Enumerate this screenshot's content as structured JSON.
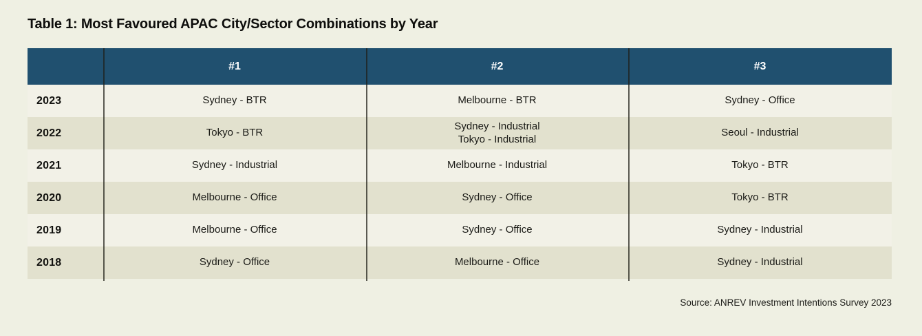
{
  "title": "Table 1: Most Favoured APAC City/Sector Combinations by Year",
  "source": "Source: ANREV Investment Intentions Survey 2023",
  "colors": {
    "page_bg": "#eff0e3",
    "header_bg": "#20506f",
    "header_text": "#ffffff",
    "row_light": "#f2f1e7",
    "row_shaded": "#e2e1ce",
    "divider": "rgba(30,30,24,0.72)",
    "text": "#1a1a16"
  },
  "table": {
    "columns": [
      "",
      "#1",
      "#2",
      "#3"
    ],
    "rows": [
      {
        "year": "2023",
        "c1": "Sydney - BTR",
        "c2": "Melbourne - BTR",
        "c3": "Sydney - Office"
      },
      {
        "year": "2022",
        "c1": "Tokyo - BTR",
        "c2": "Sydney - Industrial\nTokyo - Industrial",
        "c3": "Seoul - Industrial"
      },
      {
        "year": "2021",
        "c1": "Sydney - Industrial",
        "c2": "Melbourne - Industrial",
        "c3": "Tokyo - BTR"
      },
      {
        "year": "2020",
        "c1": "Melbourne - Office",
        "c2": "Sydney - Office",
        "c3": "Tokyo - BTR"
      },
      {
        "year": "2019",
        "c1": "Melbourne - Office",
        "c2": "Sydney - Office",
        "c3": "Sydney - Industrial"
      },
      {
        "year": "2018",
        "c1": "Sydney - Office",
        "c2": "Melbourne - Office",
        "c3": "Sydney - Industrial"
      }
    ]
  }
}
